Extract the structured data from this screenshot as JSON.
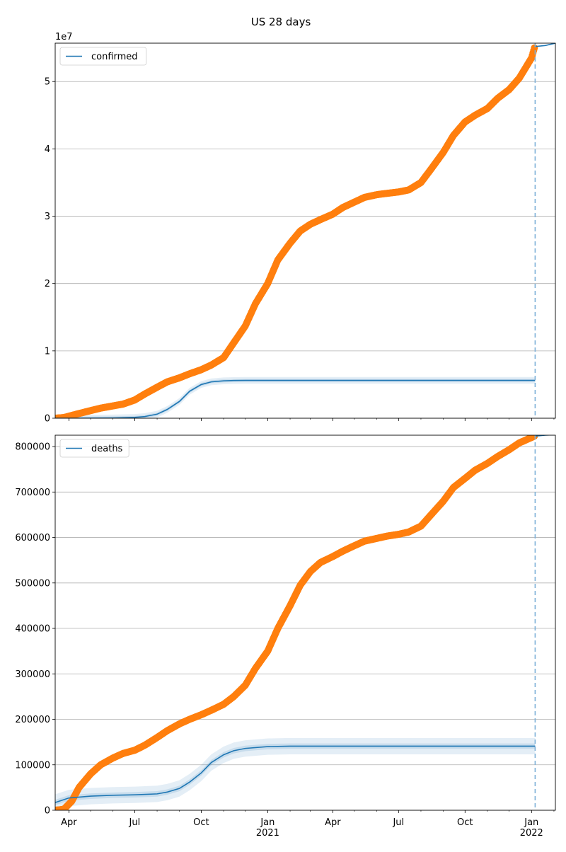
{
  "figure": {
    "title": "US 28 days"
  },
  "colors": {
    "model": "#1f77b4",
    "observed": "#ff7f0e",
    "grid": "#b0b0b0",
    "axis": "#000000",
    "forecast_line": "#7fb1d8"
  },
  "chart_data": [
    {
      "type": "line",
      "panel": "top",
      "legend": [
        "confirmed"
      ],
      "legend_position": "upper-left",
      "grid": "horizontal",
      "ylim": [
        0,
        55700000
      ],
      "xlim": [
        "2020-03-13",
        "2022-02-03"
      ],
      "y_ticks": [
        0,
        10000000,
        20000000,
        30000000,
        40000000,
        50000000
      ],
      "y_tick_labels": [
        "0",
        "1",
        "2",
        "3",
        "4",
        "5"
      ],
      "y_offset_label": "1e7",
      "x_ticks": [
        "2020-04-01",
        "2020-07-01",
        "2020-10-01",
        "2021-01-01",
        "2021-04-01",
        "2021-07-01",
        "2021-10-01",
        "2022-01-01"
      ],
      "x_tick_labels": [],
      "forecast_start": "2022-01-06",
      "observed": {
        "x": [
          "2020-03-13",
          "2020-03-25",
          "2020-04-15",
          "2020-05-15",
          "2020-06-15",
          "2020-07-01",
          "2020-07-15",
          "2020-08-01",
          "2020-08-15",
          "2020-09-01",
          "2020-09-15",
          "2020-10-01",
          "2020-10-15",
          "2020-11-01",
          "2020-11-15",
          "2020-12-01",
          "2020-12-15",
          "2021-01-01",
          "2021-01-15",
          "2021-02-01",
          "2021-02-15",
          "2021-03-01",
          "2021-03-15",
          "2021-04-01",
          "2021-04-15",
          "2021-05-01",
          "2021-05-15",
          "2021-06-01",
          "2021-06-15",
          "2021-07-01",
          "2021-07-15",
          "2021-08-01",
          "2021-08-15",
          "2021-09-01",
          "2021-09-15",
          "2021-10-01",
          "2021-10-15",
          "2021-11-01",
          "2021-11-15",
          "2021-12-01",
          "2021-12-15",
          "2022-01-01",
          "2022-01-05"
        ],
        "y": [
          0,
          100000,
          700000,
          1500000,
          2100000,
          2700000,
          3600000,
          4600000,
          5400000,
          6000000,
          6600000,
          7200000,
          7900000,
          9000000,
          11200000,
          13700000,
          17000000,
          20000000,
          23500000,
          26000000,
          27800000,
          28800000,
          29500000,
          30300000,
          31300000,
          32100000,
          32800000,
          33200000,
          33400000,
          33600000,
          33900000,
          35000000,
          37000000,
          39500000,
          42000000,
          44000000,
          45000000,
          46000000,
          47500000,
          48800000,
          50500000,
          53500000,
          55000000
        ]
      },
      "fit": {
        "x": [
          "2020-03-13",
          "2020-04-01",
          "2020-05-01",
          "2020-06-01",
          "2020-07-01",
          "2020-07-15",
          "2020-08-01",
          "2020-08-15",
          "2020-09-01",
          "2020-09-15",
          "2020-10-01",
          "2020-10-15",
          "2020-11-01",
          "2020-11-15",
          "2020-12-01",
          "2021-01-01",
          "2022-01-06"
        ],
        "y": [
          0,
          0,
          10000,
          40000,
          120000,
          250000,
          600000,
          1300000,
          2500000,
          4000000,
          5000000,
          5400000,
          5550000,
          5600000,
          5620000,
          5620000,
          5620000
        ],
        "band": 500000,
        "tail_x": [
          "2022-01-06",
          "2022-01-20",
          "2022-02-03"
        ],
        "tail_y": [
          55200000,
          55350000,
          55700000
        ]
      }
    },
    {
      "type": "line",
      "panel": "bottom",
      "legend": [
        "deaths"
      ],
      "legend_position": "upper-left",
      "grid": "horizontal",
      "ylim": [
        0,
        825000
      ],
      "xlim": [
        "2020-03-13",
        "2022-02-03"
      ],
      "y_ticks": [
        0,
        100000,
        200000,
        300000,
        400000,
        500000,
        600000,
        700000,
        800000
      ],
      "y_tick_labels": [
        "0",
        "100000",
        "200000",
        "300000",
        "400000",
        "500000",
        "600000",
        "700000",
        "800000"
      ],
      "x_ticks": [
        "2020-04-01",
        "2020-07-01",
        "2020-10-01",
        "2021-01-01",
        "2021-04-01",
        "2021-07-01",
        "2021-10-01",
        "2022-01-01"
      ],
      "x_tick_labels": [
        "Apr",
        "Jul",
        "Oct",
        "Jan\n2021",
        "Apr",
        "Jul",
        "Oct",
        "Jan\n2022"
      ],
      "forecast_start": "2022-01-06",
      "observed": {
        "x": [
          "2020-03-13",
          "2020-03-25",
          "2020-04-05",
          "2020-04-15",
          "2020-05-01",
          "2020-05-15",
          "2020-06-01",
          "2020-06-15",
          "2020-07-01",
          "2020-07-15",
          "2020-08-01",
          "2020-08-15",
          "2020-09-01",
          "2020-09-15",
          "2020-10-01",
          "2020-10-15",
          "2020-11-01",
          "2020-11-15",
          "2020-12-01",
          "2020-12-15",
          "2021-01-01",
          "2021-01-15",
          "2021-02-01",
          "2021-02-15",
          "2021-03-01",
          "2021-03-15",
          "2021-04-01",
          "2021-04-15",
          "2021-05-01",
          "2021-05-15",
          "2021-06-01",
          "2021-06-15",
          "2021-07-01",
          "2021-07-15",
          "2021-08-01",
          "2021-08-15",
          "2021-09-01",
          "2021-09-15",
          "2021-10-01",
          "2021-10-15",
          "2021-11-01",
          "2021-11-15",
          "2021-12-01",
          "2021-12-15",
          "2022-01-01",
          "2022-01-05"
        ],
        "y": [
          0,
          2000,
          20000,
          50000,
          80000,
          100000,
          115000,
          125000,
          132000,
          143000,
          160000,
          175000,
          190000,
          200000,
          210000,
          220000,
          233000,
          250000,
          275000,
          312000,
          350000,
          400000,
          450000,
          495000,
          525000,
          545000,
          558000,
          570000,
          582000,
          592000,
          598000,
          603000,
          607000,
          612000,
          625000,
          650000,
          680000,
          710000,
          730000,
          748000,
          763000,
          778000,
          793000,
          808000,
          820000,
          823000
        ]
      },
      "fit": {
        "x": [
          "2020-03-13",
          "2020-04-01",
          "2020-05-01",
          "2020-06-01",
          "2020-07-01",
          "2020-08-01",
          "2020-08-15",
          "2020-09-01",
          "2020-09-15",
          "2020-10-01",
          "2020-10-15",
          "2020-11-01",
          "2020-11-15",
          "2020-12-01",
          "2021-01-01",
          "2021-02-01",
          "2021-04-01",
          "2022-01-06"
        ],
        "y": [
          17000,
          27000,
          31000,
          33000,
          34000,
          36000,
          40000,
          48000,
          62000,
          82000,
          105000,
          122000,
          131000,
          136000,
          140000,
          141000,
          141000,
          141000
        ],
        "band_inner": 6000,
        "band_outer": 18000,
        "tail_x": [
          "2022-01-06",
          "2022-01-20",
          "2022-02-03"
        ],
        "tail_y": [
          823000,
          825000,
          826000
        ]
      }
    }
  ]
}
